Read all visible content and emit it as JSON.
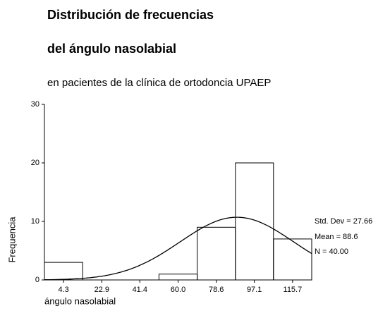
{
  "chart_data": {
    "type": "histogram",
    "title": "Distribución de frecuencias",
    "title_line2": "del ángulo nasolabial",
    "subtitle": "en pacientes de la clínica de ortodoncia UPAEP",
    "xlabel": "ángulo nasolabial",
    "ylabel": "Frequencia",
    "bins": [
      -5.0,
      13.6,
      32.1,
      50.7,
      69.3,
      87.9,
      106.4,
      125.0
    ],
    "values": [
      3,
      0,
      0,
      1,
      9,
      20,
      7
    ],
    "xlim": [
      -5,
      125
    ],
    "ylim": [
      0,
      30
    ],
    "xticks": [
      4.3,
      22.9,
      41.4,
      {
        "value": 60,
        "label": "60.0"
      },
      78.6,
      97.1,
      115.7
    ],
    "yticks": [
      0,
      10,
      20,
      30
    ],
    "normal_curve": true,
    "std_dev": {
      "value": 27.66,
      "label": "Std. Dev = 27.66"
    },
    "mean": {
      "value": 88.6,
      "label": "Mean = 88.6"
    },
    "n": {
      "value": 40,
      "label": "N = 40.00"
    }
  }
}
